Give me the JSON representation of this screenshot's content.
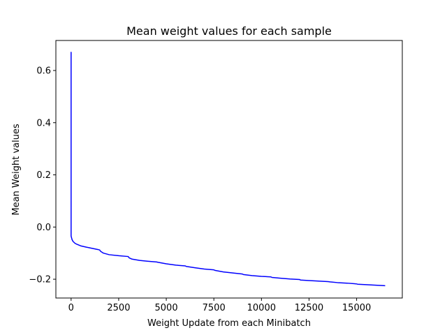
{
  "chart_data": {
    "type": "line",
    "title": "Mean weight values for each sample",
    "xlabel": "Weight Update from each Minibatch",
    "ylabel": "Mean Weight values",
    "xlim": [
      -800,
      17400
    ],
    "ylim": [
      -0.272,
      0.715
    ],
    "xticks": [
      0,
      2500,
      5000,
      7500,
      10000,
      12500,
      15000
    ],
    "xtick_labels": [
      "0",
      "2500",
      "5000",
      "7500",
      "10000",
      "12500",
      "15000"
    ],
    "yticks": [
      -0.2,
      0.0,
      0.2,
      0.4,
      0.6
    ],
    "ytick_labels": [
      "−0.2",
      "0.0",
      "0.2",
      "0.4",
      "0.6"
    ],
    "grid": false,
    "series": [
      {
        "color": "#0000ff",
        "x": [
          0,
          0,
          0,
          0,
          0,
          0,
          0,
          10,
          20,
          50,
          100,
          200,
          300,
          500,
          800,
          1000,
          1400,
          1500,
          1550,
          1700,
          2000,
          2500,
          3000,
          3050,
          3200,
          3600,
          4000,
          4500,
          4550,
          5000,
          5500,
          6000,
          6050,
          6500,
          7000,
          7500,
          7550,
          8000,
          8500,
          9000,
          9050,
          9500,
          10000,
          10500,
          10550,
          11000,
          11500,
          12000,
          12050,
          12500,
          13000,
          13500,
          13600,
          14000,
          14500,
          15000,
          15050,
          15500,
          16000,
          16500
        ],
        "values": [
          0.145,
          0.13,
          0.67,
          0.14,
          0.075,
          0.1,
          -0.035,
          -0.037,
          -0.04,
          -0.048,
          -0.055,
          -0.062,
          -0.066,
          -0.072,
          -0.077,
          -0.08,
          -0.086,
          -0.088,
          -0.093,
          -0.1,
          -0.106,
          -0.11,
          -0.113,
          -0.118,
          -0.123,
          -0.128,
          -0.131,
          -0.134,
          -0.135,
          -0.141,
          -0.146,
          -0.149,
          -0.151,
          -0.156,
          -0.161,
          -0.164,
          -0.166,
          -0.172,
          -0.176,
          -0.18,
          -0.182,
          -0.186,
          -0.189,
          -0.191,
          -0.193,
          -0.196,
          -0.199,
          -0.201,
          -0.203,
          -0.205,
          -0.207,
          -0.209,
          -0.21,
          -0.213,
          -0.215,
          -0.218,
          -0.219,
          -0.221,
          -0.223,
          -0.225
        ]
      }
    ]
  }
}
